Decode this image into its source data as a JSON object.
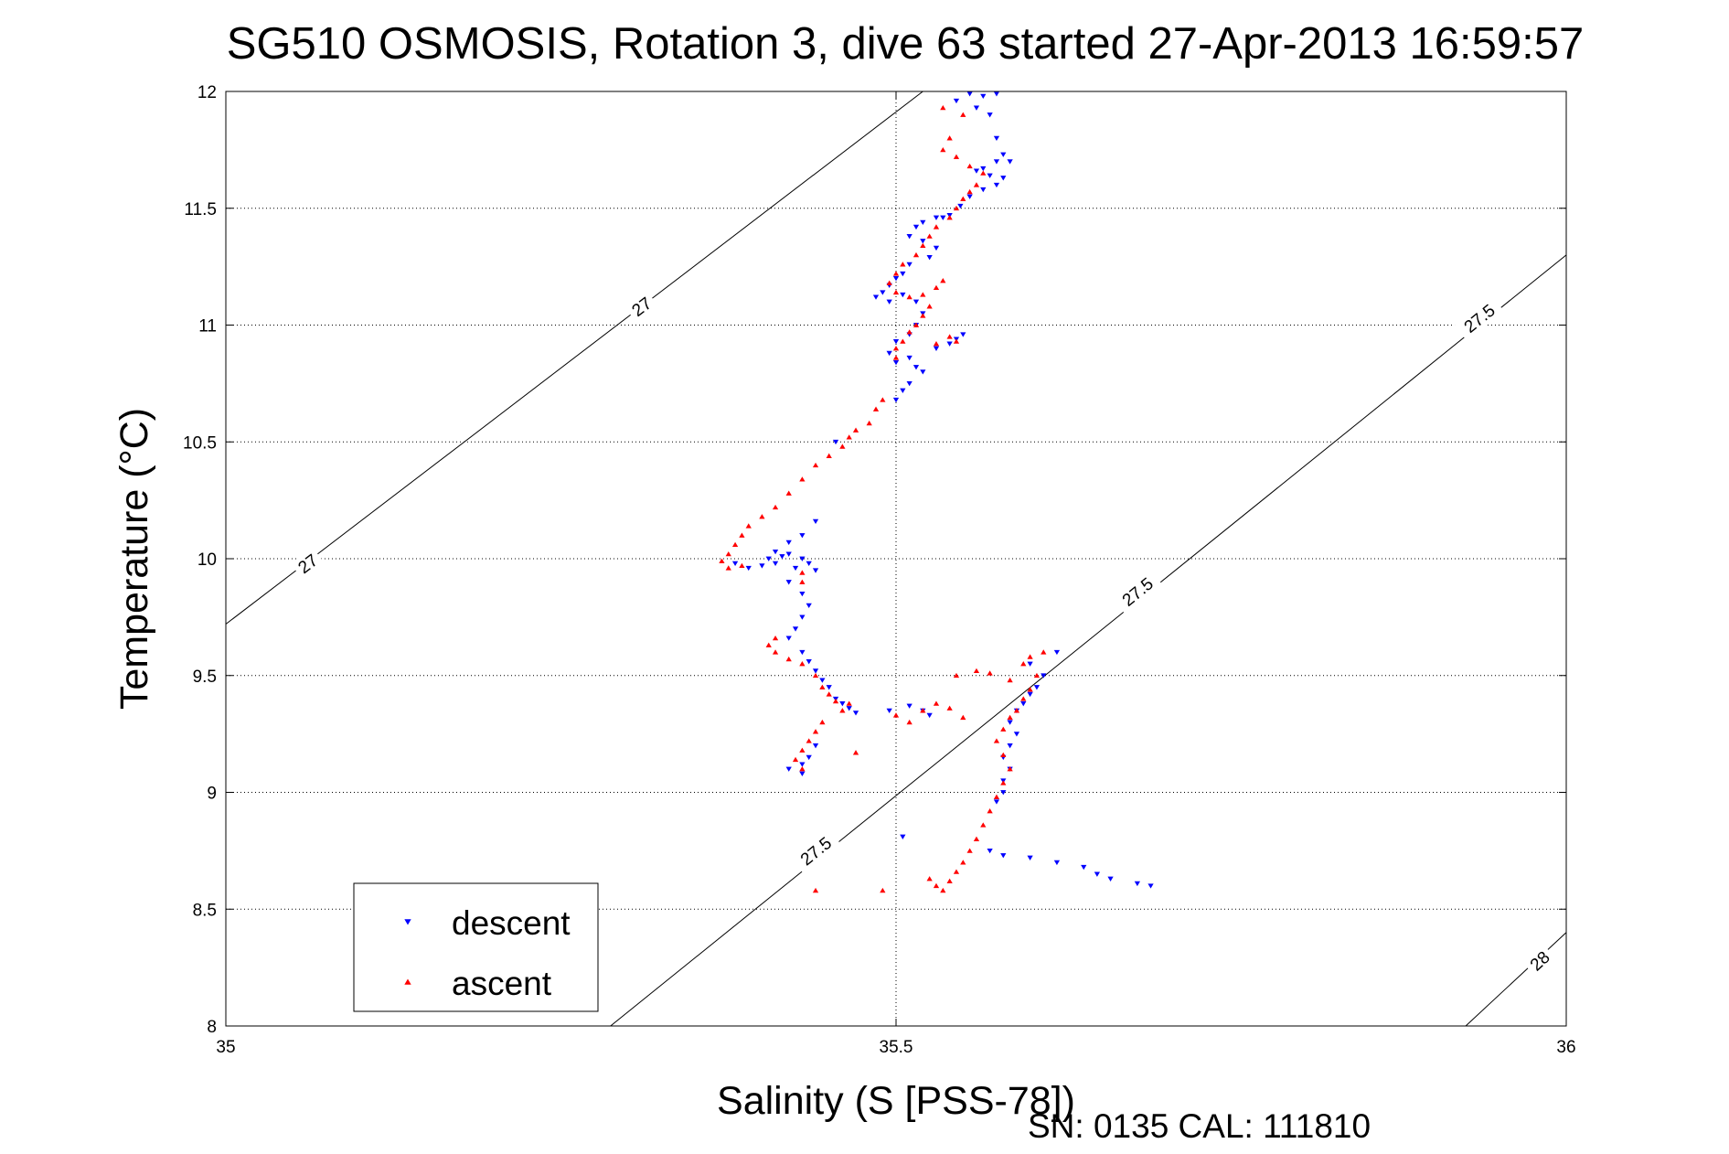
{
  "chart_data": {
    "type": "scatter",
    "title": "SG510 OSMOSIS, Rotation 3, dive 63 started 27-Apr-2013 16:59:57",
    "xlabel": "Salinity (S [PSS-78])",
    "ylabel": "Temperature (°C)",
    "xlim": [
      35,
      36
    ],
    "ylim": [
      8,
      12
    ],
    "x_ticks": [
      "35",
      "35.5",
      "36"
    ],
    "y_ticks": [
      "8",
      "8.5",
      "9",
      "9.5",
      "10",
      "10.5",
      "11",
      "11.5",
      "12"
    ],
    "grid": true,
    "legend_position": "bottom-left",
    "footer": "SN: 0135  CAL: 111810",
    "density_contours": [
      {
        "label": "27",
        "points": [
          [
            35,
            9.72
          ],
          [
            35.52,
            12.0
          ]
        ],
        "label_positions": [
          [
            35.061,
            9.98
          ],
          [
            35.31,
            11.08
          ]
        ]
      },
      {
        "label": "27.5",
        "points": [
          [
            35.287,
            8.0
          ],
          [
            36,
            11.3
          ]
        ],
        "label_positions": [
          [
            35.44,
            8.75
          ],
          [
            35.68,
            9.86
          ],
          [
            35.935,
            11.03
          ]
        ]
      },
      {
        "label": "28",
        "points": [
          [
            35.925,
            8.0
          ],
          [
            36,
            8.4
          ]
        ],
        "label_positions": [
          [
            35.98,
            8.28
          ]
        ]
      }
    ],
    "series": [
      {
        "name": "descent",
        "marker": "triangle-down",
        "color": "#0000ff",
        "points": [
          [
            35.555,
            11.99
          ],
          [
            35.565,
            11.98
          ],
          [
            35.575,
            11.99
          ],
          [
            35.545,
            11.96
          ],
          [
            35.56,
            11.93
          ],
          [
            35.57,
            11.9
          ],
          [
            35.575,
            11.8
          ],
          [
            35.58,
            11.73
          ],
          [
            35.585,
            11.7
          ],
          [
            35.575,
            11.7
          ],
          [
            35.565,
            11.67
          ],
          [
            35.56,
            11.66
          ],
          [
            35.57,
            11.64
          ],
          [
            35.58,
            11.63
          ],
          [
            35.575,
            11.6
          ],
          [
            35.565,
            11.58
          ],
          [
            35.555,
            11.55
          ],
          [
            35.548,
            11.51
          ],
          [
            35.54,
            11.47
          ],
          [
            35.535,
            11.46
          ],
          [
            35.53,
            11.46
          ],
          [
            35.52,
            11.44
          ],
          [
            35.515,
            11.42
          ],
          [
            35.51,
            11.38
          ],
          [
            35.52,
            11.36
          ],
          [
            35.53,
            11.33
          ],
          [
            35.525,
            11.29
          ],
          [
            35.51,
            11.26
          ],
          [
            35.505,
            11.22
          ],
          [
            35.5,
            11.2
          ],
          [
            35.495,
            11.17
          ],
          [
            35.49,
            11.14
          ],
          [
            35.485,
            11.12
          ],
          [
            35.495,
            11.1
          ],
          [
            35.505,
            11.13
          ],
          [
            35.515,
            11.1
          ],
          [
            35.52,
            11.05
          ],
          [
            35.515,
            11.0
          ],
          [
            35.51,
            10.96
          ],
          [
            35.5,
            10.93
          ],
          [
            35.495,
            10.88
          ],
          [
            35.5,
            10.84
          ],
          [
            35.51,
            10.86
          ],
          [
            35.515,
            10.82
          ],
          [
            35.52,
            10.8
          ],
          [
            35.51,
            10.75
          ],
          [
            35.505,
            10.72
          ],
          [
            35.5,
            10.68
          ],
          [
            35.53,
            10.9
          ],
          [
            35.54,
            10.92
          ],
          [
            35.545,
            10.94
          ],
          [
            35.55,
            10.96
          ],
          [
            35.455,
            10.5
          ],
          [
            35.44,
            10.16
          ],
          [
            35.43,
            10.1
          ],
          [
            35.42,
            10.07
          ],
          [
            35.41,
            10.03
          ],
          [
            35.405,
            10.0
          ],
          [
            35.415,
            10.01
          ],
          [
            35.42,
            10.02
          ],
          [
            35.43,
            10.0
          ],
          [
            35.435,
            9.98
          ],
          [
            35.44,
            9.95
          ],
          [
            35.425,
            9.96
          ],
          [
            35.41,
            9.98
          ],
          [
            35.4,
            9.97
          ],
          [
            35.39,
            9.96
          ],
          [
            35.38,
            9.98
          ],
          [
            35.42,
            9.9
          ],
          [
            35.43,
            9.85
          ],
          [
            35.435,
            9.8
          ],
          [
            35.43,
            9.75
          ],
          [
            35.425,
            9.7
          ],
          [
            35.42,
            9.66
          ],
          [
            35.43,
            9.6
          ],
          [
            35.435,
            9.56
          ],
          [
            35.44,
            9.52
          ],
          [
            35.445,
            9.48
          ],
          [
            35.45,
            9.45
          ],
          [
            35.455,
            9.4
          ],
          [
            35.46,
            9.38
          ],
          [
            35.465,
            9.36
          ],
          [
            35.47,
            9.34
          ],
          [
            35.44,
            9.2
          ],
          [
            35.435,
            9.15
          ],
          [
            35.43,
            9.12
          ],
          [
            35.43,
            9.08
          ],
          [
            35.42,
            9.1
          ],
          [
            35.495,
            9.35
          ],
          [
            35.51,
            9.37
          ],
          [
            35.52,
            9.35
          ],
          [
            35.525,
            9.33
          ],
          [
            35.6,
            9.55
          ],
          [
            35.62,
            9.6
          ],
          [
            35.61,
            9.5
          ],
          [
            35.605,
            9.45
          ],
          [
            35.6,
            9.42
          ],
          [
            35.595,
            9.38
          ],
          [
            35.59,
            9.35
          ],
          [
            35.585,
            9.3
          ],
          [
            35.59,
            9.25
          ],
          [
            35.585,
            9.2
          ],
          [
            35.58,
            9.15
          ],
          [
            35.585,
            9.1
          ],
          [
            35.58,
            9.05
          ],
          [
            35.58,
            9.0
          ],
          [
            35.575,
            8.96
          ],
          [
            35.57,
            8.75
          ],
          [
            35.58,
            8.73
          ],
          [
            35.6,
            8.72
          ],
          [
            35.62,
            8.7
          ],
          [
            35.64,
            8.68
          ],
          [
            35.65,
            8.65
          ],
          [
            35.66,
            8.63
          ],
          [
            35.68,
            8.61
          ],
          [
            35.69,
            8.6
          ],
          [
            35.505,
            8.81
          ]
        ]
      },
      {
        "name": "ascent",
        "marker": "triangle-up",
        "color": "#ff0000",
        "points": [
          [
            35.535,
            11.93
          ],
          [
            35.55,
            11.9
          ],
          [
            35.54,
            11.8
          ],
          [
            35.535,
            11.75
          ],
          [
            35.545,
            11.72
          ],
          [
            35.555,
            11.68
          ],
          [
            35.565,
            11.65
          ],
          [
            35.56,
            11.6
          ],
          [
            35.555,
            11.57
          ],
          [
            35.55,
            11.54
          ],
          [
            35.545,
            11.5
          ],
          [
            35.54,
            11.46
          ],
          [
            35.53,
            11.42
          ],
          [
            35.525,
            11.38
          ],
          [
            35.52,
            11.34
          ],
          [
            35.515,
            11.3
          ],
          [
            35.505,
            11.26
          ],
          [
            35.5,
            11.22
          ],
          [
            35.495,
            11.18
          ],
          [
            35.5,
            11.14
          ],
          [
            35.51,
            11.12
          ],
          [
            35.52,
            11.13
          ],
          [
            35.53,
            11.16
          ],
          [
            35.535,
            11.19
          ],
          [
            35.525,
            11.08
          ],
          [
            35.52,
            11.04
          ],
          [
            35.515,
            11.0
          ],
          [
            35.51,
            10.97
          ],
          [
            35.505,
            10.93
          ],
          [
            35.5,
            10.9
          ],
          [
            35.5,
            10.86
          ],
          [
            35.53,
            10.92
          ],
          [
            35.54,
            10.95
          ],
          [
            35.545,
            10.93
          ],
          [
            35.49,
            10.68
          ],
          [
            35.485,
            10.64
          ],
          [
            35.48,
            10.58
          ],
          [
            35.47,
            10.55
          ],
          [
            35.465,
            10.52
          ],
          [
            35.46,
            10.48
          ],
          [
            35.45,
            10.44
          ],
          [
            35.44,
            10.4
          ],
          [
            35.43,
            10.34
          ],
          [
            35.42,
            10.28
          ],
          [
            35.41,
            10.22
          ],
          [
            35.4,
            10.18
          ],
          [
            35.39,
            10.14
          ],
          [
            35.385,
            10.1
          ],
          [
            35.38,
            10.06
          ],
          [
            35.375,
            10.02
          ],
          [
            35.37,
            9.99
          ],
          [
            35.375,
            9.96
          ],
          [
            35.385,
            9.97
          ],
          [
            35.43,
            9.94
          ],
          [
            35.43,
            9.9
          ],
          [
            35.41,
            9.66
          ],
          [
            35.405,
            9.63
          ],
          [
            35.41,
            9.6
          ],
          [
            35.42,
            9.57
          ],
          [
            35.43,
            9.55
          ],
          [
            35.44,
            9.5
          ],
          [
            35.445,
            9.45
          ],
          [
            35.45,
            9.42
          ],
          [
            35.455,
            9.39
          ],
          [
            35.465,
            9.38
          ],
          [
            35.46,
            9.35
          ],
          [
            35.445,
            9.3
          ],
          [
            35.44,
            9.26
          ],
          [
            35.435,
            9.22
          ],
          [
            35.43,
            9.18
          ],
          [
            35.425,
            9.14
          ],
          [
            35.43,
            9.1
          ],
          [
            35.47,
            9.17
          ],
          [
            35.5,
            9.33
          ],
          [
            35.51,
            9.3
          ],
          [
            35.52,
            9.35
          ],
          [
            35.53,
            9.38
          ],
          [
            35.54,
            9.36
          ],
          [
            35.55,
            9.32
          ],
          [
            35.545,
            9.5
          ],
          [
            35.56,
            9.52
          ],
          [
            35.57,
            9.51
          ],
          [
            35.585,
            9.48
          ],
          [
            35.595,
            9.55
          ],
          [
            35.6,
            9.58
          ],
          [
            35.61,
            9.6
          ],
          [
            35.605,
            9.5
          ],
          [
            35.6,
            9.44
          ],
          [
            35.595,
            9.4
          ],
          [
            35.59,
            9.35
          ],
          [
            35.585,
            9.32
          ],
          [
            35.58,
            9.27
          ],
          [
            35.575,
            9.22
          ],
          [
            35.58,
            9.16
          ],
          [
            35.585,
            9.1
          ],
          [
            35.58,
            9.04
          ],
          [
            35.575,
            8.98
          ],
          [
            35.57,
            8.92
          ],
          [
            35.565,
            8.86
          ],
          [
            35.56,
            8.8
          ],
          [
            35.555,
            8.75
          ],
          [
            35.55,
            8.7
          ],
          [
            35.545,
            8.66
          ],
          [
            35.54,
            8.62
          ],
          [
            35.535,
            8.58
          ],
          [
            35.53,
            8.6
          ],
          [
            35.525,
            8.63
          ],
          [
            35.44,
            8.58
          ],
          [
            35.49,
            8.58
          ]
        ]
      }
    ]
  }
}
